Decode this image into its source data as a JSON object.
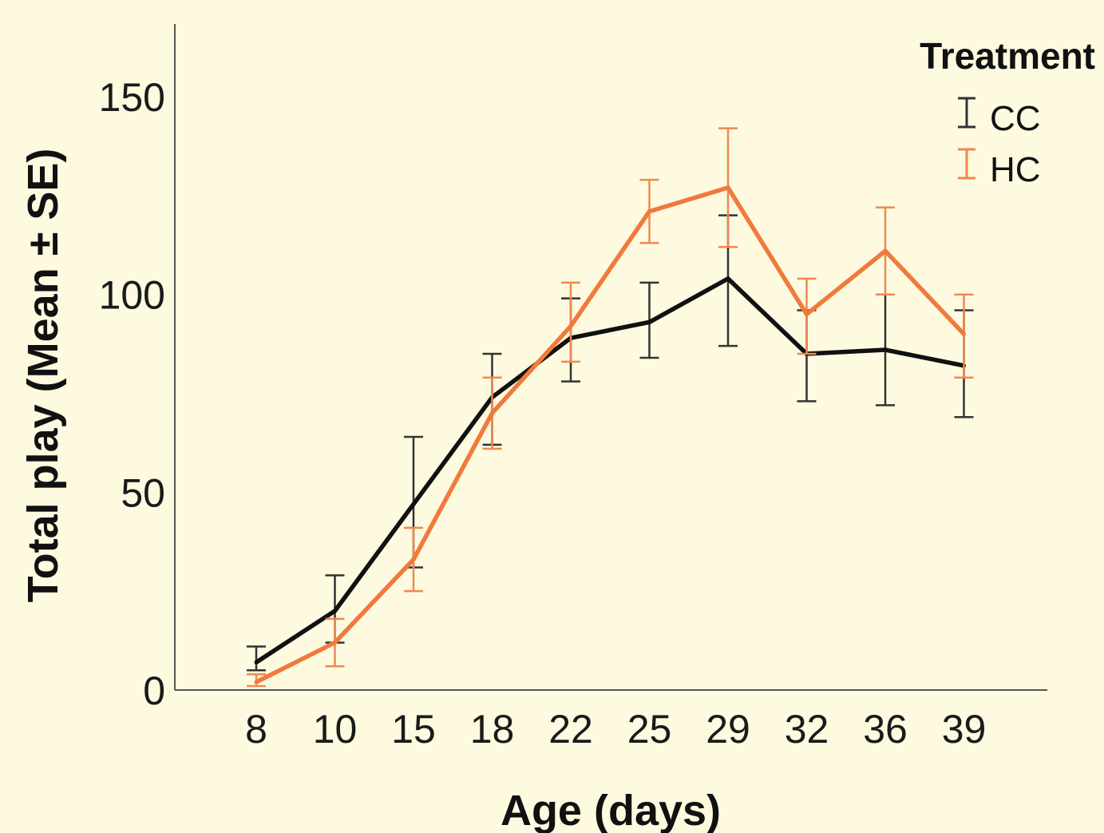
{
  "chart_data": {
    "type": "line",
    "xlabel": "Age (days)",
    "ylabel": "Total play (Mean ± SE)",
    "legend_title": "Treatment",
    "legend_position": "top-right",
    "categories": [
      "8",
      "10",
      "15",
      "18",
      "22",
      "25",
      "29",
      "32",
      "36",
      "39"
    ],
    "ylim": [
      0,
      160
    ],
    "yticks": [
      0,
      50,
      100,
      150
    ],
    "grid": false,
    "series": [
      {
        "name": "CC",
        "color": "#111111",
        "values": [
          7,
          20,
          47,
          74,
          89,
          93,
          104,
          85,
          86,
          82
        ],
        "err_low": [
          5,
          12,
          31,
          62,
          78,
          84,
          87,
          73,
          72,
          69
        ],
        "err_high": [
          11,
          29,
          64,
          85,
          99,
          103,
          120,
          96,
          100,
          96
        ]
      },
      {
        "name": "HC",
        "color": "#f07a3c",
        "values": [
          2,
          12,
          33,
          70,
          92,
          121,
          127,
          95,
          111,
          90
        ],
        "err_low": [
          1,
          6,
          25,
          61,
          83,
          113,
          112,
          85,
          100,
          79
        ],
        "err_high": [
          4,
          18,
          41,
          79,
          103,
          129,
          142,
          104,
          122,
          100
        ]
      }
    ]
  }
}
